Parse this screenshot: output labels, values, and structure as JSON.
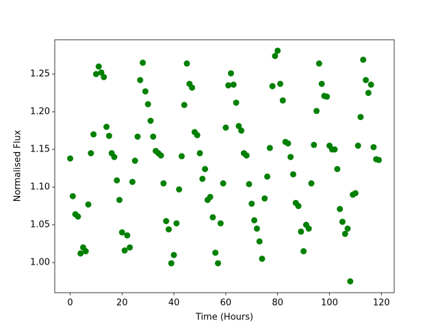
{
  "chart_data": {
    "type": "scatter",
    "xlabel": "Time (Hours)",
    "ylabel": "Normalised Flux",
    "color": "#008000",
    "x": [
      0,
      1,
      2,
      3,
      4,
      5,
      6,
      7,
      8,
      9,
      10,
      11,
      12,
      13,
      14,
      15,
      16,
      17,
      18,
      19,
      20,
      21,
      22,
      23,
      24,
      25,
      26,
      27,
      28,
      29,
      30,
      31,
      32,
      33,
      34,
      35,
      36,
      37,
      38,
      39,
      40,
      41,
      42,
      43,
      44,
      45,
      46,
      47,
      48,
      49,
      50,
      51,
      52,
      53,
      54,
      55,
      56,
      57,
      58,
      59,
      60,
      61,
      62,
      63,
      64,
      65,
      66,
      67,
      68,
      69,
      70,
      71,
      72,
      73,
      74,
      75,
      76,
      77,
      78,
      79,
      80,
      81,
      82,
      83,
      84,
      85,
      86,
      87,
      88,
      89,
      90,
      91,
      92,
      93,
      94,
      95,
      96,
      97,
      98,
      99,
      100,
      101,
      102,
      103,
      104,
      105,
      106,
      107,
      108,
      109,
      110,
      111,
      112,
      113,
      114,
      115,
      116,
      117,
      118,
      119
    ],
    "values": [
      1.138,
      1.088,
      1.064,
      1.061,
      1.012,
      1.02,
      1.015,
      1.077,
      1.145,
      1.17,
      1.25,
      1.26,
      1.252,
      1.246,
      1.18,
      1.168,
      1.145,
      1.14,
      1.109,
      1.083,
      1.04,
      1.016,
      1.036,
      1.02,
      1.107,
      1.135,
      1.167,
      1.242,
      1.265,
      1.227,
      1.21,
      1.188,
      1.167,
      1.148,
      1.145,
      1.142,
      1.105,
      1.055,
      1.044,
      0.999,
      1.01,
      1.052,
      1.097,
      1.141,
      1.209,
      1.264,
      1.237,
      1.232,
      1.173,
      1.169,
      1.145,
      1.111,
      1.124,
      1.083,
      1.087,
      1.06,
      1.013,
      0.999,
      1.052,
      1.105,
      1.179,
      1.235,
      1.251,
      1.236,
      1.212,
      1.181,
      1.175,
      1.145,
      1.142,
      1.104,
      1.078,
      1.056,
      1.045,
      1.028,
      1.005,
      1.085,
      1.114,
      1.152,
      1.234,
      1.274,
      1.281,
      1.237,
      1.215,
      1.16,
      1.158,
      1.14,
      1.117,
      1.079,
      1.075,
      1.041,
      1.015,
      1.05,
      1.045,
      1.105,
      1.156,
      1.201,
      1.264,
      1.237,
      1.221,
      1.22,
      1.155,
      1.15,
      1.15,
      1.124,
      1.071,
      1.054,
      1.038,
      1.045,
      0.975,
      1.09,
      1.092,
      1.155,
      1.193,
      1.269,
      1.242,
      1.225,
      1.236,
      1.153,
      1.137,
      1.136
    ],
    "xlim": [
      -5.95,
      124.95
    ],
    "ylim": [
      0.96,
      1.2955
    ],
    "xticks": [
      0,
      20,
      40,
      60,
      80,
      100,
      120
    ],
    "yticks": [
      {
        "value": 1.0,
        "label": "1.00"
      },
      {
        "value": 1.05,
        "label": "1.05"
      },
      {
        "value": 1.1,
        "label": "1.10"
      },
      {
        "value": 1.15,
        "label": "1.15"
      },
      {
        "value": 1.2,
        "label": "1.20"
      },
      {
        "value": 1.25,
        "label": "1.25"
      }
    ]
  }
}
